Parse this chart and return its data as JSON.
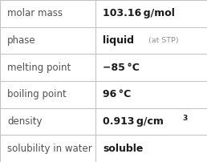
{
  "rows": [
    {
      "label": "molar mass",
      "value": "103.16 g/mol",
      "bold": true,
      "note": null,
      "superscript": null
    },
    {
      "label": "phase",
      "value": "liquid",
      "bold": true,
      "note": "(at STP)",
      "superscript": null
    },
    {
      "label": "melting point",
      "value": "−85 °C",
      "bold": true,
      "note": null,
      "superscript": null
    },
    {
      "label": "boiling point",
      "value": "96 °C",
      "bold": true,
      "note": null,
      "superscript": null
    },
    {
      "label": "density",
      "value": "0.913 g/cm",
      "bold": true,
      "note": null,
      "superscript": "3"
    },
    {
      "label": "solubility in water",
      "value": "soluble",
      "bold": true,
      "note": null,
      "superscript": null
    }
  ],
  "col_split": 0.462,
  "bg_color": "#ffffff",
  "border_color": "#c0c0c0",
  "label_color": "#505050",
  "value_color": "#1a1a1a",
  "note_color": "#909090",
  "label_fontsize": 8.5,
  "value_fontsize": 9.0,
  "note_fontsize": 6.8,
  "sup_fontsize": 6.5
}
